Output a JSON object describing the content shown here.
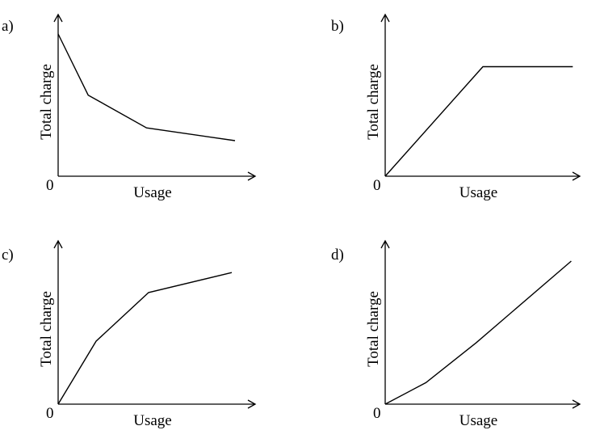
{
  "chart_data": [
    {
      "type": "line",
      "panel_label": "a)",
      "xlabel": "Usage",
      "ylabel": "Total charge",
      "origin_label": "0",
      "xlim": [
        0,
        10
      ],
      "ylim": [
        0,
        10
      ],
      "series": [
        {
          "x": [
            0,
            1.7,
            5.0,
            10.0
          ],
          "y": [
            10.0,
            5.7,
            3.4,
            2.5
          ]
        }
      ]
    },
    {
      "type": "line",
      "panel_label": "b)",
      "xlabel": "Usage",
      "ylabel": "Total charge",
      "origin_label": "0",
      "xlim": [
        0,
        10
      ],
      "ylim": [
        0,
        10
      ],
      "series": [
        {
          "x": [
            0,
            5.0,
            9.6
          ],
          "y": [
            0,
            7.7,
            7.7
          ]
        }
      ]
    },
    {
      "type": "line",
      "panel_label": "c)",
      "xlabel": "Usage",
      "ylabel": "Total charge",
      "origin_label": "0",
      "xlim": [
        0,
        10
      ],
      "ylim": [
        0,
        10
      ],
      "series": [
        {
          "x": [
            0,
            2.1,
            5.0,
            9.6
          ],
          "y": [
            0,
            4.4,
            7.8,
            9.2
          ]
        }
      ]
    },
    {
      "type": "line",
      "panel_label": "d)",
      "xlabel": "Usage",
      "ylabel": "Total charge",
      "origin_label": "0",
      "xlim": [
        0,
        10
      ],
      "ylim": [
        0,
        10
      ],
      "series": [
        {
          "x": [
            0,
            2.1,
            4.7,
            9.6
          ],
          "y": [
            0,
            1.5,
            4.3,
            10.0
          ]
        }
      ]
    }
  ]
}
